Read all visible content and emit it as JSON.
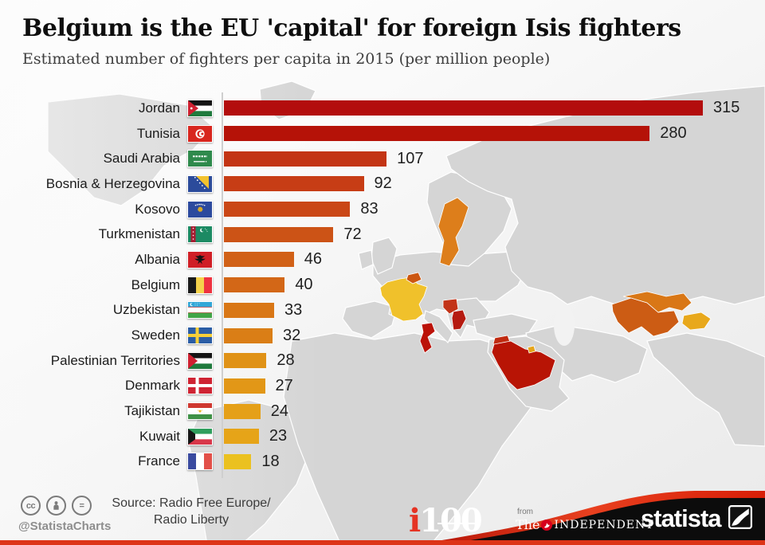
{
  "header": {
    "title": "Belgium is the EU 'capital' for foreign Isis fighters",
    "subtitle": "Estimated number of fighters per capita in 2015 (per million people)"
  },
  "chart_data": {
    "type": "bar",
    "orientation": "horizontal",
    "title": "Belgium is the EU 'capital' for foreign Isis fighters",
    "subtitle": "Estimated number of fighters per capita in 2015 (per million people)",
    "unit": "fighters per million people",
    "xlim": [
      0,
      330
    ],
    "grid": false,
    "categories": [
      "Jordan",
      "Tunisia",
      "Saudi Arabia",
      "Bosnia & Herzegovina",
      "Kosovo",
      "Turkmenistan",
      "Albania",
      "Belgium",
      "Uzbekistan",
      "Sweden",
      "Palestinian Territories",
      "Denmark",
      "Tajikistan",
      "Kuwait",
      "France"
    ],
    "values": [
      315,
      280,
      107,
      92,
      83,
      72,
      46,
      40,
      33,
      32,
      28,
      27,
      24,
      23,
      18
    ],
    "bar_colors": [
      "#b30d0d",
      "#b51208",
      "#c33414",
      "#c73d15",
      "#ca4716",
      "#cc5316",
      "#d16117",
      "#d36717",
      "#d97716",
      "#da7e16",
      "#e09217",
      "#e29717",
      "#e5a018",
      "#e6a418",
      "#ebc120"
    ]
  },
  "map": {
    "land_color": "#d5d5d5",
    "highlights": [
      {
        "country": "Sweden",
        "color": "#dd7e1b"
      },
      {
        "country": "France",
        "color": "#f0c12b"
      },
      {
        "country": "Belgium",
        "color": "#cc5712"
      },
      {
        "country": "Bosnia & Herzegovina",
        "color": "#c23318"
      },
      {
        "country": "Kosovo & Albania",
        "color": "#b51a10"
      },
      {
        "country": "Tunisia",
        "color": "#bb1208"
      },
      {
        "country": "Jordan",
        "color": "#c02a10"
      },
      {
        "country": "Saudi Arabia",
        "color": "#b81405"
      },
      {
        "country": "Turkmenistan",
        "color": "#cc5c14"
      },
      {
        "country": "Uzbekistan",
        "color": "#d97716"
      },
      {
        "country": "Tajikistan",
        "color": "#e8a81c"
      },
      {
        "country": "Kuwait",
        "color": "#e6a418"
      }
    ]
  },
  "footer": {
    "license_handle": "@StatistaCharts",
    "source_line1": "Source: Radio Free Europe/",
    "source_line2": "Radio Liberty",
    "i100": {
      "i": "i",
      "num": "100"
    },
    "independent": {
      "from": "from",
      "the": "The",
      "name": "INDEPENDENT"
    },
    "statista": "statista",
    "accent_red": "#e2371b"
  }
}
